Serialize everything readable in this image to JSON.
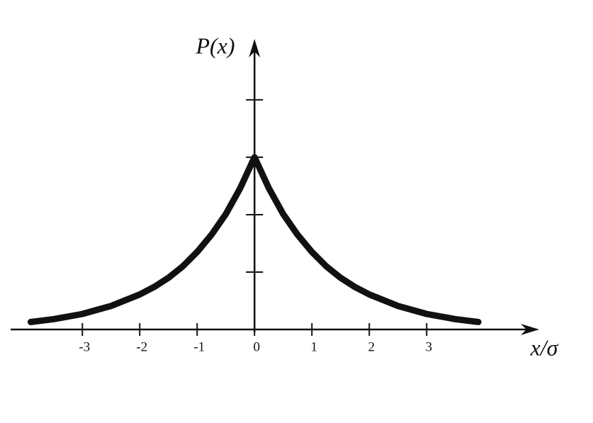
{
  "chart_data": {
    "type": "line",
    "x_label": "x/σ",
    "y_label": "P(x)",
    "x": [
      -3.9,
      -3.5,
      -3,
      -2.5,
      -2,
      -1.75,
      -1.5,
      -1.25,
      -1,
      -0.75,
      -0.5,
      -0.25,
      0,
      0.25,
      0.5,
      0.75,
      1,
      1.25,
      1.5,
      1.75,
      2,
      2.5,
      3,
      3.5,
      3.9
    ],
    "values": [
      0.13,
      0.18,
      0.27,
      0.41,
      0.61,
      0.74,
      0.9,
      1.1,
      1.35,
      1.65,
      2.01,
      2.46,
      3,
      2.46,
      2.01,
      1.65,
      1.35,
      1.1,
      0.9,
      0.74,
      0.61,
      0.41,
      0.27,
      0.18,
      0.13
    ],
    "color": "#111111",
    "xlim": [
      -4.25,
      4.96
    ],
    "ylim": [
      0,
      5.06
    ],
    "xticks": [
      -3,
      -2,
      -1,
      0,
      1,
      2,
      3
    ],
    "yticks": [
      1,
      2,
      3,
      4
    ],
    "grid": false
  }
}
